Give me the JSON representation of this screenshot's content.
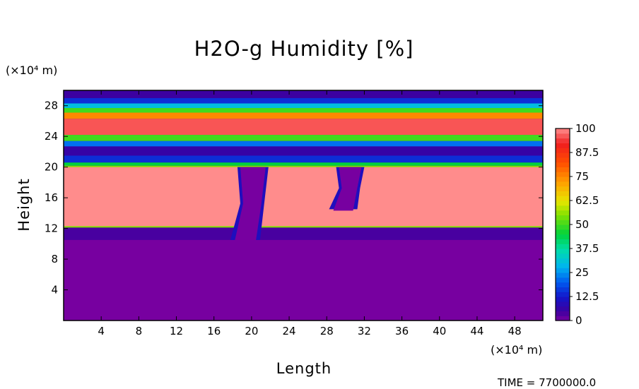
{
  "chart_data": {
    "type": "heatmap",
    "title": "H2O-g Humidity [%]",
    "xlabel": "Length",
    "ylabel": "Height",
    "x_unit": "(×10⁴ m)",
    "y_unit": "(×10⁴ m)",
    "xlim": [
      0,
      51
    ],
    "ylim": [
      0,
      30
    ],
    "x_ticks": [
      4,
      8,
      12,
      16,
      20,
      24,
      28,
      32,
      36,
      40,
      44,
      48
    ],
    "y_ticks": [
      4,
      8,
      12,
      16,
      20,
      24,
      28
    ],
    "colorbar": {
      "ticks": [
        "0",
        "12.5",
        "25",
        "37.5",
        "50",
        "62.5",
        "75",
        "87.5",
        "100"
      ],
      "range": [
        0,
        100
      ]
    },
    "stripes": [
      {
        "y": [
          0,
          10.5
        ],
        "humidity": 0
      },
      {
        "y": [
          20.2,
          20.6
        ],
        "humidity": 45
      },
      {
        "y": [
          20.6,
          21.5
        ],
        "humidity": 15
      },
      {
        "y": [
          21.5,
          22.7
        ],
        "humidity": 6
      },
      {
        "y": [
          22.7,
          23.4
        ],
        "humidity": 22
      },
      {
        "y": [
          23.4,
          24.2
        ],
        "humidity": 50
      },
      {
        "y": [
          24.2,
          26.3
        ],
        "humidity": 96
      },
      {
        "y": [
          26.3,
          27.1
        ],
        "humidity": 75
      },
      {
        "y": [
          27.1,
          27.7
        ],
        "humidity": 50
      },
      {
        "y": [
          27.7,
          28.3
        ],
        "humidity": 30
      },
      {
        "y": [
          28.3,
          29.0
        ],
        "humidity": 15
      },
      {
        "y": [
          29.0,
          30.0
        ],
        "humidity": 5
      }
    ],
    "cloud_layer": {
      "y": [
        12.3,
        20.0
      ],
      "humidity": 100
    },
    "dry_intrusions": [
      {
        "x": [
          18.5,
          21.8
        ],
        "y": [
          10.5,
          20.0
        ]
      },
      {
        "x": [
          29.0,
          32.0
        ],
        "y": [
          14.5,
          20.0
        ]
      }
    ]
  },
  "footer": {
    "time_label": "TIME = 7700000.0"
  }
}
